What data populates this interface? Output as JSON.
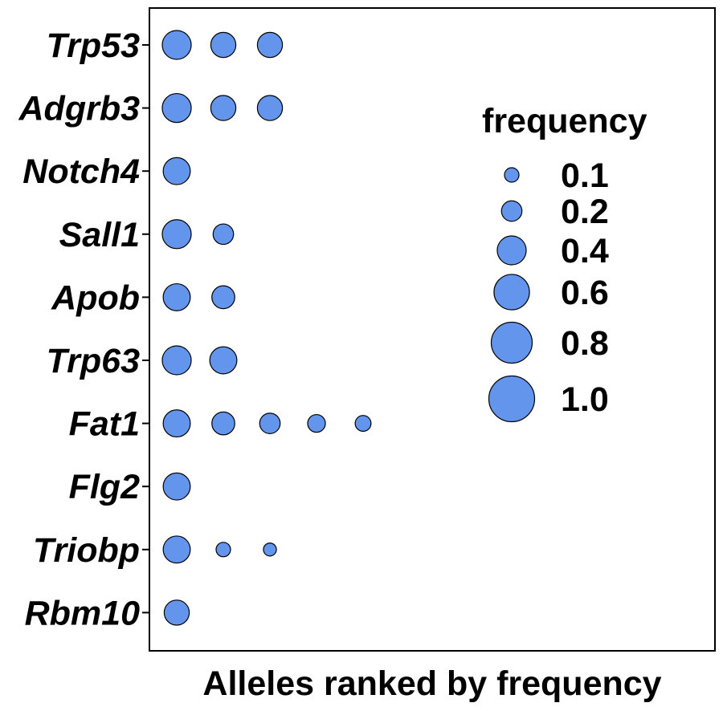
{
  "chart_data": {
    "type": "scatter",
    "xlabel": "Alleles ranked by frequency",
    "ylabel": "",
    "categories": [
      "Trp53",
      "Adgrb3",
      "Notch4",
      "Sall1",
      "Apob",
      "Trp63",
      "Fat1",
      "Flg2",
      "Triobp",
      "Rbm10"
    ],
    "series": [
      {
        "gene": "Trp53",
        "frequencies": [
          0.4,
          0.3,
          0.3
        ]
      },
      {
        "gene": "Adgrb3",
        "frequencies": [
          0.4,
          0.3,
          0.3
        ]
      },
      {
        "gene": "Notch4",
        "frequencies": [
          0.35
        ]
      },
      {
        "gene": "Sall1",
        "frequencies": [
          0.4,
          0.2
        ]
      },
      {
        "gene": "Apob",
        "frequencies": [
          0.35,
          0.25
        ]
      },
      {
        "gene": "Trp63",
        "frequencies": [
          0.4,
          0.35
        ]
      },
      {
        "gene": "Fat1",
        "frequencies": [
          0.35,
          0.25,
          0.2,
          0.15,
          0.12
        ]
      },
      {
        "gene": "Flg2",
        "frequencies": [
          0.35
        ]
      },
      {
        "gene": "Triobp",
        "frequencies": [
          0.35,
          0.1,
          0.08
        ]
      },
      {
        "gene": "Rbm10",
        "frequencies": [
          0.3
        ]
      }
    ],
    "size_legend": {
      "title": "frequency",
      "values": [
        0.1,
        0.2,
        0.4,
        0.6,
        0.8,
        1.0
      ],
      "labels": [
        "0.1",
        "0.2",
        "0.4",
        "0.6",
        "0.8",
        "1.0"
      ]
    },
    "point_color": "#6495ED",
    "grid": false,
    "legend_position": "right"
  }
}
